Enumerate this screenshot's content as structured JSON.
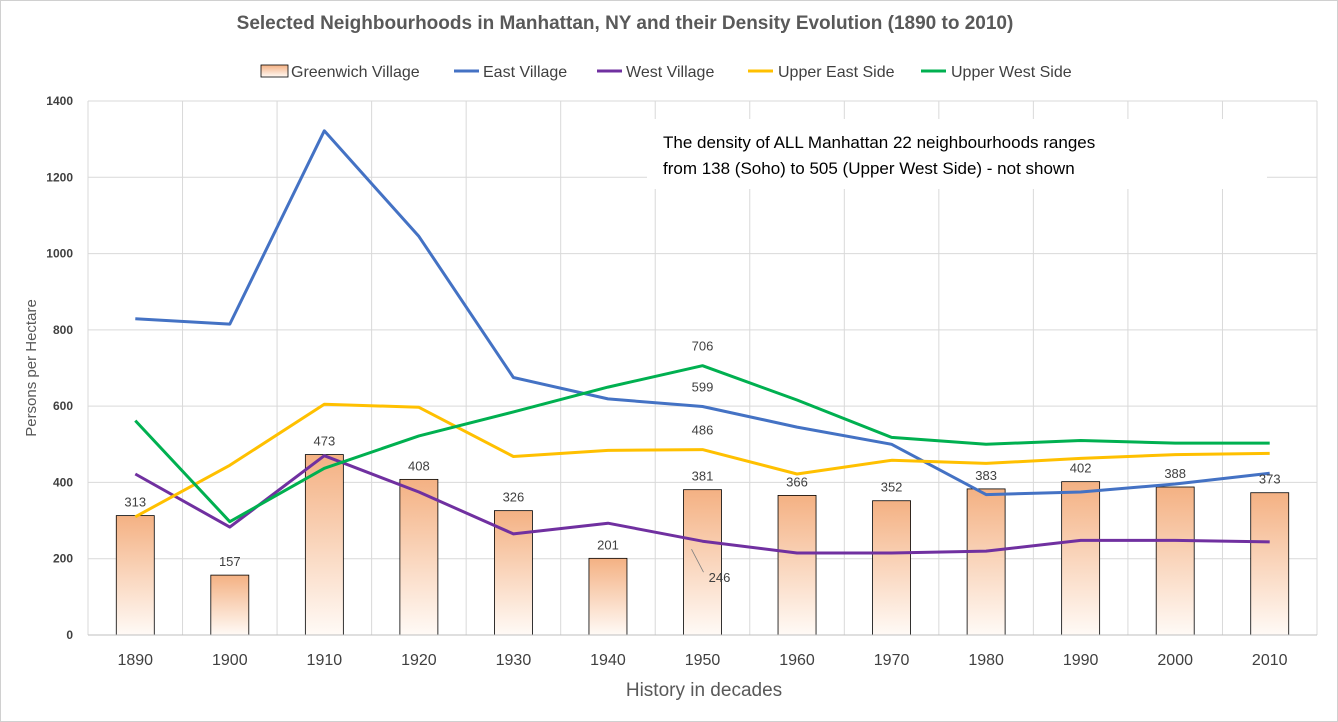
{
  "chart_data": {
    "type": "bar",
    "title": "Selected Neighbourhoods in Manhattan, NY and their Density  Evolution (1890 to 2010)",
    "xlabel": "History in decades",
    "ylabel": "Persons per Hectare",
    "ylim": [
      0,
      1400
    ],
    "yticks": [
      "0",
      "200",
      "400",
      "600",
      "800",
      "1000",
      "1200",
      "1400"
    ],
    "categories": [
      "1890",
      "1900",
      "1910",
      "1920",
      "1930",
      "1940",
      "1950",
      "1960",
      "1970",
      "1980",
      "1990",
      "2000",
      "2010"
    ],
    "grid": true,
    "legend_position": "top",
    "annotation": {
      "line1": "The density of ALL Manhattan  22 neighbourhoods  ranges",
      "line2": "from 138 (Soho)  to  505 (Upper West Side) - not shown"
    },
    "series": [
      {
        "name": "Greenwich Village",
        "type": "bar",
        "color": "#f4b183",
        "values": [
          313,
          157,
          473,
          408,
          326,
          201,
          381,
          366,
          352,
          383,
          402,
          388,
          373
        ],
        "labels": [
          "313",
          "157",
          "473",
          "408",
          "326",
          "201",
          "381",
          "366",
          "352",
          "383",
          "402",
          "388",
          "373"
        ]
      },
      {
        "name": "East Village",
        "type": "line",
        "color": "#4472c4",
        "values": [
          829,
          815,
          1322,
          1045,
          675,
          619,
          599,
          545,
          500,
          368,
          375,
          396,
          424
        ],
        "point_labels": [
          {
            "index": 6,
            "text": "599"
          }
        ]
      },
      {
        "name": "West Village",
        "type": "line",
        "color": "#7030a0",
        "values": [
          422,
          283,
          470,
          375,
          265,
          293,
          246,
          215,
          215,
          220,
          248,
          248,
          244
        ],
        "point_labels": [
          {
            "index": 6,
            "text": "246"
          }
        ]
      },
      {
        "name": "Upper East Side",
        "type": "line",
        "color": "#ffc000",
        "values": [
          310,
          445,
          605,
          597,
          468,
          484,
          486,
          422,
          458,
          450,
          463,
          473,
          476
        ],
        "point_labels": [
          {
            "index": 6,
            "text": "486"
          }
        ]
      },
      {
        "name": "Upper West Side",
        "type": "line",
        "color": "#00b050",
        "values": [
          562,
          297,
          437,
          522,
          585,
          650,
          706,
          616,
          518,
          500,
          510,
          503,
          503
        ],
        "point_labels": [
          {
            "index": 6,
            "text": "706"
          }
        ]
      }
    ]
  }
}
